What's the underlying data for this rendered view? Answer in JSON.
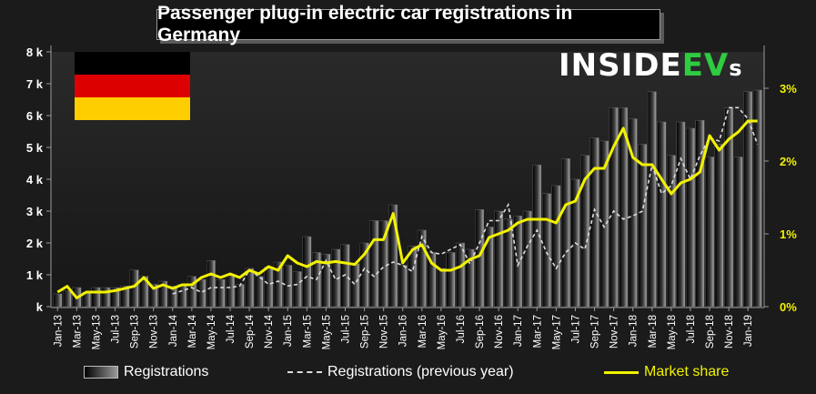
{
  "title": "Passenger plug-in electric car registrations in Germany",
  "logo": {
    "main": "INSIDE",
    "accent": "EV",
    "tail": "s"
  },
  "flag_colors": [
    "#000000",
    "#dd0000",
    "#ffce00"
  ],
  "colors": {
    "background": "#1b1b1b",
    "market_share": "#f2f200",
    "prev_year": "#dddddd"
  },
  "legend": {
    "registrations": "Registrations",
    "previous_year": "Registrations (previous year)",
    "market_share": "Market share"
  },
  "chart_data": {
    "type": "bar",
    "categories": [
      "Jan-13",
      "Feb-13",
      "Mar-13",
      "Apr-13",
      "May-13",
      "Jun-13",
      "Jul-13",
      "Aug-13",
      "Sep-13",
      "Oct-13",
      "Nov-13",
      "Dec-13",
      "Jan-14",
      "Feb-14",
      "Mar-14",
      "Apr-14",
      "May-14",
      "Jun-14",
      "Jul-14",
      "Aug-14",
      "Sep-14",
      "Oct-14",
      "Nov-14",
      "Dec-14",
      "Jan-15",
      "Feb-15",
      "Mar-15",
      "Apr-15",
      "May-15",
      "Jun-15",
      "Jul-15",
      "Aug-15",
      "Sep-15",
      "Oct-15",
      "Nov-15",
      "Dec-15",
      "Jan-16",
      "Feb-16",
      "Mar-16",
      "Apr-16",
      "May-16",
      "Jun-16",
      "Jul-16",
      "Aug-16",
      "Sep-16",
      "Oct-16",
      "Nov-16",
      "Dec-16",
      "Jan-17",
      "Feb-17",
      "Mar-17",
      "Apr-17",
      "May-17",
      "Jun-17",
      "Jul-17",
      "Aug-17",
      "Sep-17",
      "Oct-17",
      "Nov-17",
      "Dec-17",
      "Jan-18",
      "Feb-18",
      "Mar-18",
      "Apr-18",
      "May-18",
      "Jun-18",
      "Jul-18",
      "Aug-18",
      "Sep-18",
      "Oct-18",
      "Nov-18",
      "Dec-18",
      "Jan-19",
      "Feb-19"
    ],
    "x_tick_labels": [
      "Jan-13",
      "Mar-13",
      "May-13",
      "Jul-13",
      "Sep-13",
      "Nov-13",
      "Jan-14",
      "Mar-14",
      "May-14",
      "Jul-14",
      "Sep-14",
      "Nov-14",
      "Jan-15",
      "Mar-15",
      "May-15",
      "Jul-15",
      "Sep-15",
      "Nov-15",
      "Jan-16",
      "Mar-16",
      "May-16",
      "Jul-16",
      "Sep-16",
      "Nov-16",
      "Jan-17",
      "Mar-17",
      "May-17",
      "Jul-17",
      "Sep-17",
      "Nov-17",
      "Jan-18",
      "Mar-18",
      "May-18",
      "Jul-18",
      "Sep-18",
      "Nov-18",
      "Jan-19"
    ],
    "series": [
      {
        "name": "Registrations",
        "values": [
          400,
          500,
          600,
          450,
          600,
          600,
          600,
          650,
          1150,
          950,
          700,
          800,
          650,
          700,
          950,
          850,
          1450,
          850,
          1000,
          700,
          1200,
          950,
          1250,
          1400,
          1300,
          1100,
          2200,
          1700,
          1650,
          1800,
          1950,
          1350,
          2000,
          2700,
          2700,
          3200,
          1300,
          1900,
          2400,
          1700,
          1200,
          1700,
          2000,
          1800,
          3050,
          2500,
          3000,
          2750,
          2850,
          3000,
          4450,
          3550,
          3800,
          4650,
          4000,
          4750,
          5300,
          5200,
          6250,
          6250,
          5900,
          5100,
          6750,
          5800,
          4750,
          5800,
          5600,
          5850,
          4700,
          5100,
          6250,
          4700,
          6750,
          6800
        ]
      },
      {
        "name": "Registrations (previous year)",
        "values": [
          null,
          null,
          null,
          null,
          null,
          null,
          null,
          null,
          null,
          null,
          null,
          null,
          400,
          500,
          600,
          450,
          600,
          600,
          600,
          650,
          1150,
          950,
          700,
          800,
          650,
          700,
          950,
          850,
          1450,
          850,
          1000,
          700,
          1200,
          950,
          1250,
          1400,
          1300,
          1100,
          2200,
          1700,
          1650,
          1800,
          1950,
          1350,
          2000,
          2700,
          2700,
          3200,
          1300,
          1900,
          2400,
          1700,
          1200,
          1700,
          2000,
          1800,
          3050,
          2500,
          3000,
          2750,
          2850,
          3000,
          4450,
          3550,
          3800,
          4650,
          4000,
          4750,
          5300,
          5200,
          6250,
          6250,
          5900,
          5100
        ]
      },
      {
        "name": "Market share",
        "axis": "right",
        "values": [
          0.2,
          0.28,
          0.12,
          0.2,
          0.2,
          0.2,
          0.22,
          0.25,
          0.28,
          0.4,
          0.25,
          0.3,
          0.25,
          0.3,
          0.3,
          0.4,
          0.45,
          0.4,
          0.45,
          0.4,
          0.5,
          0.45,
          0.55,
          0.5,
          0.7,
          0.6,
          0.55,
          0.62,
          0.6,
          0.62,
          0.6,
          0.58,
          0.72,
          0.92,
          0.92,
          1.28,
          0.6,
          0.78,
          0.85,
          0.6,
          0.5,
          0.5,
          0.55,
          0.65,
          0.7,
          0.95,
          1.0,
          1.05,
          1.15,
          1.2,
          1.2,
          1.2,
          1.15,
          1.4,
          1.45,
          1.75,
          1.9,
          1.9,
          2.2,
          2.45,
          2.05,
          1.95,
          1.95,
          1.75,
          1.55,
          1.7,
          1.75,
          1.85,
          2.35,
          2.15,
          2.3,
          2.4,
          2.55,
          2.55
        ]
      }
    ],
    "y_left": {
      "ylim": [
        0,
        8000
      ],
      "tick_labels": [
        "k",
        "1 k",
        "2 k",
        "3 k",
        "4 k",
        "5 k",
        "6 k",
        "7 k",
        "8 k"
      ]
    },
    "y_right": {
      "ylim": [
        0,
        3.5
      ],
      "tick_labels": [
        "0%",
        "1%",
        "2%",
        "3%"
      ]
    },
    "grid": false,
    "legend_position": "bottom"
  }
}
